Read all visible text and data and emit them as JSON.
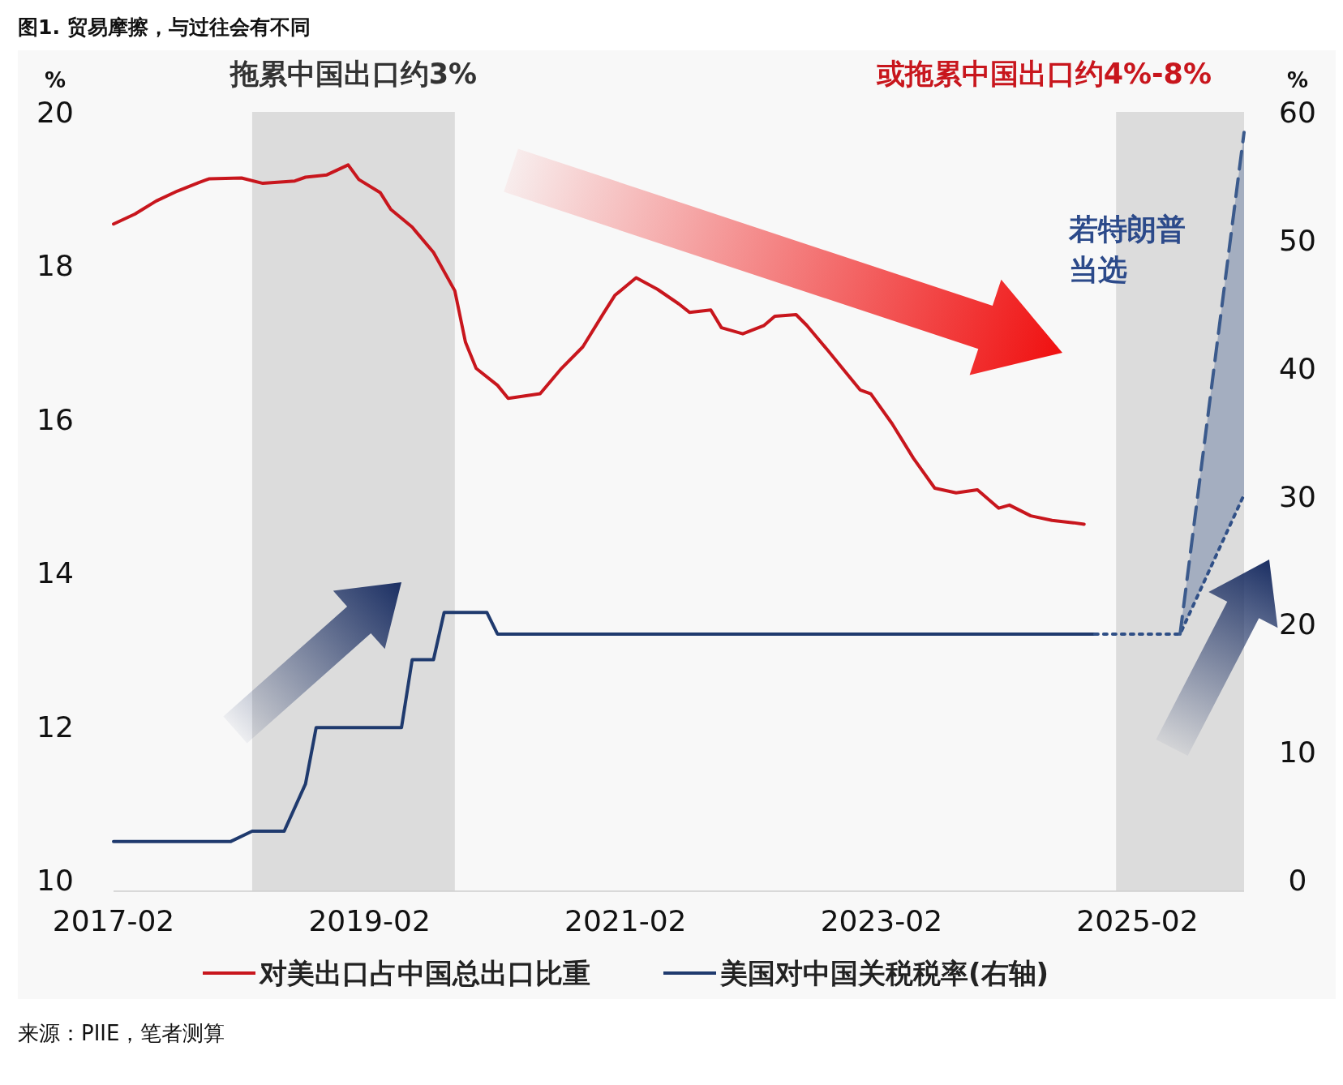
{
  "chart_data": {
    "type": "line",
    "title": "图1. 贸易摩擦，与过往会有不同",
    "ylabel": "%",
    "y2label": "%",
    "xlim": [
      "2017-02",
      "2025-12"
    ],
    "xticks": [
      {
        "value": "2017-02",
        "label": "2017-02"
      },
      {
        "value": "2019-02",
        "label": "2019-02"
      },
      {
        "value": "2021-02",
        "label": "2021-02"
      },
      {
        "value": "2023-02",
        "label": "2023-02"
      },
      {
        "value": "2025-02",
        "label": "2025-02"
      }
    ],
    "ylim": [
      10,
      20
    ],
    "yticks": [
      10,
      12,
      14,
      16,
      18,
      20
    ],
    "y2lim": [
      0,
      60
    ],
    "y2ticks": [
      0,
      10,
      20,
      30,
      40,
      50,
      60
    ],
    "legend": "bottom",
    "grid": false,
    "series": [
      {
        "name": "对美出口占中国总出口比重",
        "color": "#c8161d",
        "axis": "y",
        "line_style": "solid",
        "x": [
          "2017-02",
          "2017-04",
          "2017-06",
          "2017-08",
          "2017-10",
          "2017-11",
          "2018-02",
          "2018-04",
          "2018-07",
          "2018-08",
          "2018-10",
          "2018-12",
          "2019-01",
          "2019-03",
          "2019-04",
          "2019-06",
          "2019-08",
          "2019-10",
          "2019-11",
          "2019-12",
          "2020-02",
          "2020-03",
          "2020-06",
          "2020-08",
          "2020-10",
          "2020-12",
          "2021-01",
          "2021-03",
          "2021-05",
          "2021-07",
          "2021-08",
          "2021-10",
          "2021-11",
          "2022-01",
          "2022-03",
          "2022-04",
          "2022-06",
          "2022-07",
          "2022-09",
          "2022-11",
          "2022-12",
          "2023-01",
          "2023-03",
          "2023-05",
          "2023-07",
          "2023-09",
          "2023-11",
          "2024-01",
          "2024-02",
          "2024-04",
          "2024-06",
          "2024-08",
          "2024-09"
        ],
        "values": [
          18.54,
          18.67,
          18.84,
          18.97,
          19.08,
          19.13,
          19.14,
          19.07,
          19.1,
          19.15,
          19.18,
          19.31,
          19.12,
          18.95,
          18.73,
          18.5,
          18.17,
          17.67,
          17.0,
          16.66,
          16.44,
          16.27,
          16.33,
          16.66,
          16.94,
          17.39,
          17.61,
          17.84,
          17.69,
          17.5,
          17.39,
          17.42,
          17.19,
          17.11,
          17.22,
          17.34,
          17.36,
          17.22,
          16.89,
          16.55,
          16.38,
          16.33,
          15.94,
          15.49,
          15.1,
          15.04,
          15.08,
          14.84,
          14.88,
          14.74,
          14.68,
          14.65,
          14.63
        ]
      },
      {
        "name": "美国对中国关税税率(右轴)",
        "color": "#1f3a6e",
        "axis": "y2",
        "line_style": "solid",
        "x": [
          "2017-02",
          "2018-01",
          "2018-03",
          "2018-06",
          "2018-08",
          "2018-09",
          "2019-05",
          "2019-06",
          "2019-08",
          "2019-09",
          "2020-01",
          "2020-02",
          "2024-10"
        ],
        "values": [
          3,
          3,
          3.8,
          3.8,
          7.5,
          11.9,
          11.9,
          17.2,
          17.2,
          20.9,
          20.9,
          19.2,
          19.2
        ]
      },
      {
        "color": "#2f4f86",
        "axis": "y2",
        "line_style": "dotted",
        "x": [
          "2024-10",
          "2025-06",
          "2025-12"
        ],
        "values": [
          19.2,
          19.2,
          30.1
        ]
      },
      {
        "color": "#3b5a8c",
        "axis": "y2",
        "line_style": "dashed",
        "x": [
          "2025-06",
          "2025-12"
        ],
        "values": [
          19.2,
          58.4
        ],
        "lower": [
          19.2,
          30.1
        ],
        "upper": [
          19.2,
          58.4
        ]
      }
    ],
    "bands": [
      {
        "axis": "x",
        "from": "2018-03",
        "to": "2019-10",
        "label": "拖累中国出口约3%",
        "color": "#dcdcdc"
      },
      {
        "axis": "x",
        "from": "2024-12",
        "to": "2025-12",
        "label": "或拖累中国出口约4%-8%",
        "color": "#dcdcdc"
      }
    ],
    "annotations": [
      "若特朗普当选",
      "来源：PIIE，笔者测算"
    ]
  }
}
